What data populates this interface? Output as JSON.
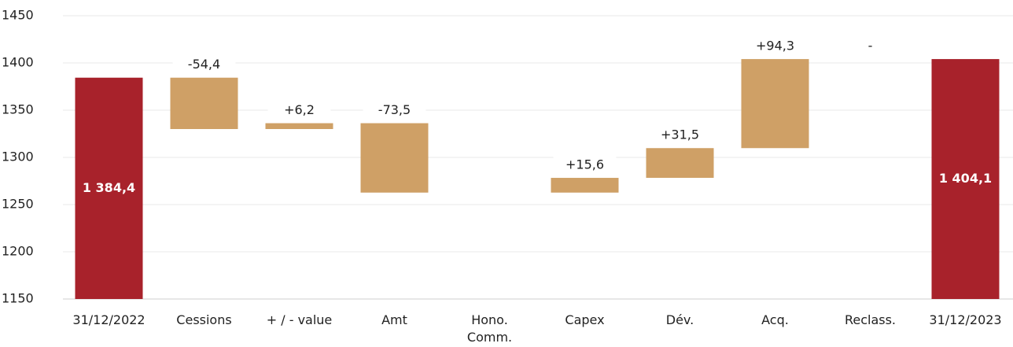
{
  "chart_data": {
    "type": "waterfall",
    "categories": [
      "31/12/2022",
      "Cessions",
      "+ / - value",
      "Amt",
      "Hono.\nComm.",
      "Capex",
      "Dév.",
      "Acq.",
      "Reclass.",
      "31/12/2023"
    ],
    "measure": [
      "absolute",
      "relative",
      "relative",
      "relative",
      "relative",
      "relative",
      "relative",
      "relative",
      "relative",
      "absolute"
    ],
    "values": [
      1384.4,
      -54.4,
      6.2,
      -73.5,
      0,
      15.6,
      31.5,
      94.3,
      0,
      1404.1
    ],
    "value_labels": [
      "1 384,4",
      "-54,4",
      "+6,2",
      "-73,5",
      null,
      "+15,6",
      "+31,5",
      "+94,3",
      "-",
      "1 404,1"
    ],
    "color": "#cfa066",
    "total_color": "#a8222b",
    "ylim": [
      1150,
      1450
    ],
    "yticks": [
      1150,
      1200,
      1250,
      1300,
      1350,
      1400,
      1450
    ],
    "grid": true
  }
}
